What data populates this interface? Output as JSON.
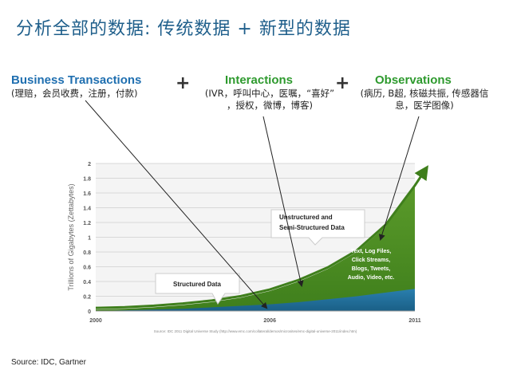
{
  "slide": {
    "title": "分析全部的数据: 传统数据 + 新型的数据",
    "plus_sign": "+",
    "source": "Source: IDC, Gartner"
  },
  "categories": {
    "business": {
      "title": "Business Transactions",
      "subtitle": "(理赔，会员收费，注册，付款)"
    },
    "interactions": {
      "title": "Interactions",
      "subtitle_lines": [
        "(IVR，呼叫中心，医嘱，“喜好”",
        "，授权，微博，博客)"
      ]
    },
    "observations": {
      "title": "Observations",
      "subtitle_lines": [
        "(病历, B超, 核磁共振, 传感器信",
        "息，医学图像)"
      ]
    }
  },
  "chart_data": {
    "type": "area",
    "title": "",
    "xlabel": "",
    "ylabel": "Trillions of Gigabytes (Zettabytes)",
    "xlim": [
      2000,
      2011
    ],
    "ylim": [
      0,
      2
    ],
    "x_ticks": [
      "2000",
      "2006",
      "2011"
    ],
    "y_ticks": [
      "0",
      "0.2",
      "0.4",
      "0.6",
      "0.8",
      "1",
      "1.2",
      "1.4",
      "1.6",
      "1.8",
      "2"
    ],
    "x": [
      2000,
      2001,
      2002,
      2003,
      2004,
      2005,
      2006,
      2007,
      2008,
      2009,
      2010,
      2011
    ],
    "series": [
      {
        "name": "Structured Data",
        "color": "#1f6f9a",
        "values": [
          0.0,
          0.01,
          0.02,
          0.03,
          0.05,
          0.07,
          0.09,
          0.12,
          0.16,
          0.2,
          0.25,
          0.3
        ]
      },
      {
        "name": "Unstructured and Semi-Structured Data",
        "color": "#5a9a2a",
        "values": [
          0.02,
          0.03,
          0.05,
          0.08,
          0.12,
          0.18,
          0.27,
          0.4,
          0.57,
          0.8,
          1.15,
          1.68
        ]
      }
    ],
    "callouts": {
      "structured": "Structured Data",
      "unstructured_lines": [
        "Unstructured and",
        "Semi-Structured Data"
      ],
      "examples_lines": [
        "Text, Log Files,",
        "Click Streams,",
        "Blogs, Tweets,",
        "Audio, Video, etc."
      ]
    },
    "footnote": "Source: IDC 2011 Digital Universe Study (http://www.emc.com/collateral/demos/microsites/emc-digital-universe-2011/index.htm)",
    "grid": true
  }
}
